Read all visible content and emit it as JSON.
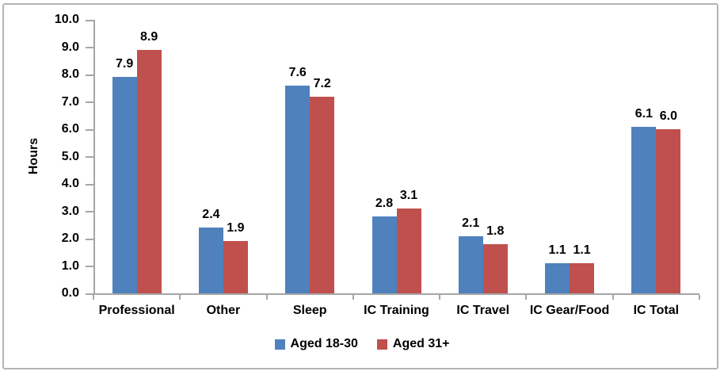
{
  "chart_data": {
    "type": "bar",
    "title": "",
    "xlabel": "",
    "ylabel": "Hours",
    "ylim": [
      0.0,
      10.0
    ],
    "ytick_step": 1.0,
    "ytick_labels": [
      "0.0",
      "1.0",
      "2.0",
      "3.0",
      "4.0",
      "5.0",
      "6.0",
      "7.0",
      "8.0",
      "9.0",
      "10.0"
    ],
    "grid": false,
    "data_labels": true,
    "legend_position": "bottom",
    "categories": [
      "Professional",
      "Other",
      "Sleep",
      "IC Training",
      "IC Travel",
      "IC Gear/Food",
      "IC Total"
    ],
    "series": [
      {
        "name": "Aged 18-30",
        "color": "#4F81BD",
        "values": [
          7.9,
          2.4,
          7.6,
          2.8,
          2.1,
          1.1,
          6.1
        ]
      },
      {
        "name": "Aged 31+",
        "color": "#C0504D",
        "values": [
          8.9,
          1.9,
          7.2,
          3.1,
          1.8,
          1.1,
          6.0
        ]
      }
    ]
  },
  "colors": {
    "axis": "#a6a6a6",
    "text": "#000000",
    "frame_border": "#b5b5b5",
    "background": "#ffffff"
  }
}
